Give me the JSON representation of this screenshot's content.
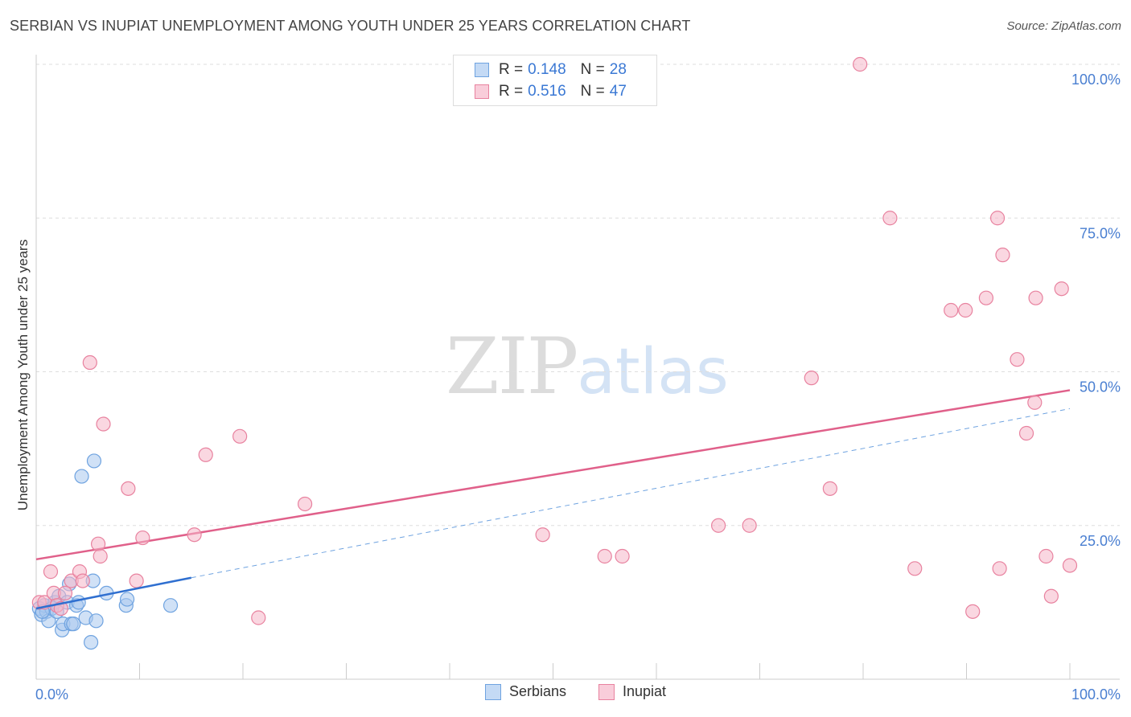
{
  "header": {
    "title": "SERBIAN VS INUPIAT UNEMPLOYMENT AMONG YOUTH UNDER 25 YEARS CORRELATION CHART",
    "source": "Source: ZipAtlas.com"
  },
  "watermark": {
    "zip": "ZIP",
    "atlas": "atlas"
  },
  "legend": {
    "r_label": "R =",
    "n_label": "N =",
    "serbian": {
      "r": "0.148",
      "n": "28",
      "color": "#a9c8ef"
    },
    "inupiat": {
      "r": "0.516",
      "n": "47",
      "color": "#f5b6c9"
    }
  },
  "bottom_legend": {
    "serbians": "Serbians",
    "inupiat": "Inupiat"
  },
  "chart_data": {
    "type": "scatter",
    "title": "SERBIAN VS INUPIAT UNEMPLOYMENT AMONG YOUTH UNDER 25 YEARS CORRELATION CHART",
    "xlabel": "",
    "ylabel": "Unemployment Among Youth under 25 years",
    "xlim": [
      0,
      100
    ],
    "ylim": [
      0,
      102
    ],
    "x_tick_labels": [
      "0.0%",
      "100.0%"
    ],
    "y_tick_labels": [
      "25.0%",
      "50.0%",
      "75.0%",
      "100.0%"
    ],
    "y_ticks": [
      25,
      50,
      75,
      100
    ],
    "series": [
      {
        "name": "Serbians",
        "color": "#6fa3e0",
        "fill": "#a9c8ef",
        "points": [
          [
            0.3,
            11.5
          ],
          [
            0.5,
            10.5
          ],
          [
            0.8,
            12.0
          ],
          [
            1.0,
            11.0
          ],
          [
            1.2,
            9.5
          ],
          [
            1.5,
            11.5
          ],
          [
            1.8,
            12.5
          ],
          [
            2.0,
            11.0
          ],
          [
            2.2,
            13.5
          ],
          [
            2.5,
            8.0
          ],
          [
            2.6,
            9.0
          ],
          [
            3.0,
            12.5
          ],
          [
            3.2,
            15.5
          ],
          [
            3.4,
            9.0
          ],
          [
            3.6,
            9.0
          ],
          [
            3.9,
            12.0
          ],
          [
            4.1,
            12.5
          ],
          [
            4.4,
            33.0
          ],
          [
            4.8,
            10.0
          ],
          [
            5.3,
            6.0
          ],
          [
            5.5,
            16.0
          ],
          [
            5.6,
            35.5
          ],
          [
            5.8,
            9.5
          ],
          [
            6.8,
            14.0
          ],
          [
            8.7,
            12.0
          ],
          [
            8.8,
            13.0
          ],
          [
            13.0,
            12.0
          ],
          [
            0.6,
            11.0
          ]
        ],
        "trend": {
          "x": [
            0,
            15
          ],
          "y": [
            11.5,
            16.5
          ]
        },
        "trend_dashed": {
          "x": [
            15,
            100
          ],
          "y": [
            16.5,
            44.0
          ]
        }
      },
      {
        "name": "Inupiat",
        "color": "#e8829f",
        "fill": "#f5b6c9",
        "points": [
          [
            0.3,
            12.5
          ],
          [
            0.8,
            12.5
          ],
          [
            1.4,
            17.5
          ],
          [
            1.7,
            14.0
          ],
          [
            2.0,
            12.0
          ],
          [
            2.4,
            11.5
          ],
          [
            2.8,
            14.0
          ],
          [
            3.4,
            16.0
          ],
          [
            4.2,
            17.5
          ],
          [
            4.5,
            16.0
          ],
          [
            5.2,
            51.5
          ],
          [
            6.0,
            22.0
          ],
          [
            6.2,
            20.0
          ],
          [
            6.5,
            41.5
          ],
          [
            8.9,
            31.0
          ],
          [
            9.7,
            16.0
          ],
          [
            10.3,
            23.0
          ],
          [
            15.3,
            23.5
          ],
          [
            16.4,
            36.5
          ],
          [
            19.7,
            39.5
          ],
          [
            21.5,
            10.0
          ],
          [
            26.0,
            28.5
          ],
          [
            49.0,
            23.5
          ],
          [
            55.0,
            20.0
          ],
          [
            56.7,
            20.0
          ],
          [
            66.0,
            25.0
          ],
          [
            69.0,
            25.0
          ],
          [
            75.0,
            49.0
          ],
          [
            76.8,
            31.0
          ],
          [
            79.7,
            100.0
          ],
          [
            82.6,
            75.0
          ],
          [
            85.0,
            18.0
          ],
          [
            88.5,
            60.0
          ],
          [
            89.9,
            60.0
          ],
          [
            90.6,
            11.0
          ],
          [
            91.9,
            62.0
          ],
          [
            93.0,
            75.0
          ],
          [
            93.2,
            18.0
          ],
          [
            93.5,
            69.0
          ],
          [
            94.9,
            52.0
          ],
          [
            95.8,
            40.0
          ],
          [
            96.6,
            45.0
          ],
          [
            96.7,
            62.0
          ],
          [
            97.7,
            20.0
          ],
          [
            98.2,
            13.5
          ],
          [
            99.2,
            63.5
          ],
          [
            100.0,
            18.5
          ]
        ],
        "trend": {
          "x": [
            0,
            100
          ],
          "y": [
            19.5,
            47.0
          ]
        }
      }
    ]
  }
}
